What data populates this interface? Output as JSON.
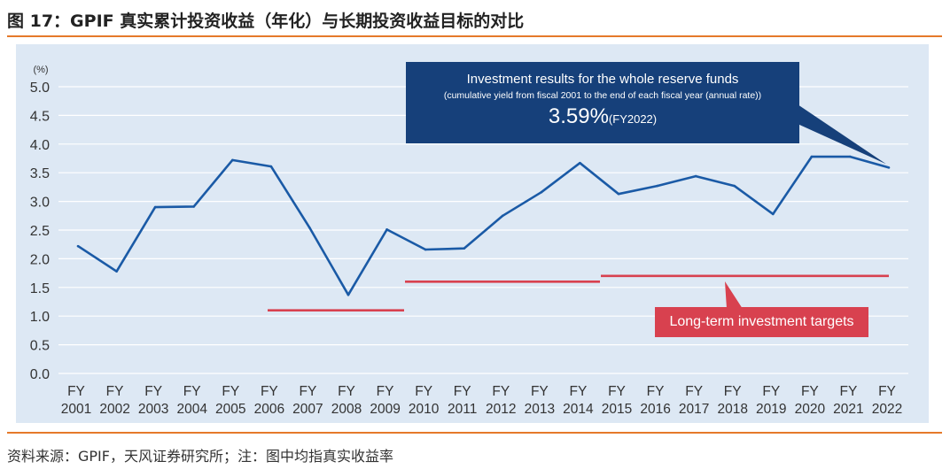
{
  "header": {
    "title": "图 17：GPIF 真实累计投资收益（年化）与长期投资收益目标的对比"
  },
  "footer": {
    "source": "资料来源：GPIF，天风证券研究所；注：图中均指真实收益率"
  },
  "annotations": {
    "callout_title": "Investment results for the whole reserve funds",
    "callout_subtitle": "(cumulative yield from fiscal 2001 to the end of each fiscal year (annual rate))",
    "callout_value": "3.59%",
    "callout_value_note": "(FY2022)",
    "targets_label": "Long-term investment targets"
  },
  "colors": {
    "line": "#1a5aa6",
    "target": "#d8414f",
    "callout_bg": "#16407a",
    "panel_bg": "#dde8f4",
    "accent_rule": "#e57a2a"
  },
  "chart_data": {
    "type": "line",
    "title": "GPIF cumulative real return (annualized) vs long-term investment targets",
    "ylabel": "(%)",
    "xlabel": "",
    "ylim": [
      0,
      5
    ],
    "yticks": [
      "0.0",
      "0.5",
      "1.0",
      "1.5",
      "2.0",
      "2.5",
      "3.0",
      "3.5",
      "4.0",
      "4.5",
      "5.0"
    ],
    "grid": true,
    "categories": [
      "FY 2001",
      "FY 2002",
      "FY 2003",
      "FY 2004",
      "FY 2005",
      "FY 2006",
      "FY 2007",
      "FY 2008",
      "FY 2009",
      "FY 2010",
      "FY 2011",
      "FY 2012",
      "FY 2013",
      "FY 2014",
      "FY 2015",
      "FY 2016",
      "FY 2017",
      "FY 2018",
      "FY 2019",
      "FY 2020",
      "FY 2021",
      "FY 2022"
    ],
    "series": [
      {
        "name": "Investment results for the whole reserve funds",
        "values": [
          2.22,
          1.78,
          2.9,
          2.91,
          3.72,
          3.61,
          2.54,
          1.37,
          2.51,
          2.16,
          2.18,
          2.75,
          3.16,
          3.67,
          3.13,
          3.27,
          3.44,
          3.27,
          2.78,
          3.78,
          3.78,
          3.59
        ]
      }
    ],
    "targets": [
      {
        "name": "Long-term investment target",
        "from": "FY 2006",
        "to": "FY 2009",
        "value": 1.1
      },
      {
        "name": "Long-term investment target",
        "from": "FY 2010",
        "to": "FY 2014",
        "value": 1.6
      },
      {
        "name": "Long-term investment target",
        "from": "FY 2015",
        "to": "FY 2022",
        "value": 1.7
      }
    ]
  }
}
